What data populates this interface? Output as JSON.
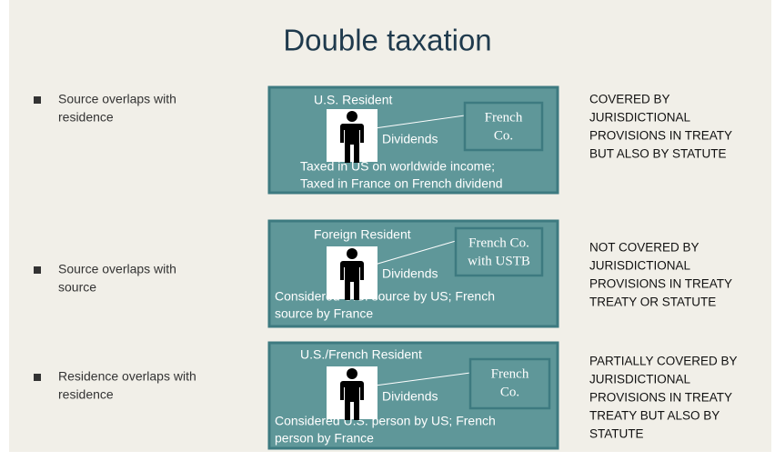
{
  "title": "Double taxation",
  "rows": [
    {
      "bullet": [
        "Source overlaps with",
        "residence"
      ],
      "resident": "U.S. Resident",
      "company": [
        "French",
        "Co."
      ],
      "income": "Dividends",
      "description": [
        "Taxed in US on worldwide income;",
        "Taxed in France on French dividend"
      ],
      "note": [
        "COVERED BY",
        "JURISDICTIONAL",
        "PROVISIONS IN TREATY",
        "BUT ALSO BY STATUTE"
      ]
    },
    {
      "bullet": [
        "Source overlaps with",
        "source"
      ],
      "resident": "Foreign Resident",
      "company": [
        "French Co.",
        "with USTB"
      ],
      "income": "Dividends",
      "description": [
        "Considered U.S. source by US; French",
        "source by France"
      ],
      "note": [
        "NOT COVERED BY",
        "JURISDICTIONAL",
        "PROVISIONS IN TREATY",
        "TREATY OR STATUTE"
      ]
    },
    {
      "bullet": [
        "Residence overlaps with",
        "residence"
      ],
      "resident": "U.S./French Resident",
      "company": [
        "French",
        "Co."
      ],
      "income": "Dividends",
      "description": [
        "Considered U.S. person by US; French",
        "person by France"
      ],
      "note": [
        "PARTIALLY COVERED BY",
        "JURISDICTIONAL",
        "PROVISIONS IN TREATY",
        "TREATY BUT ALSO BY",
        "STATUTE"
      ]
    }
  ]
}
